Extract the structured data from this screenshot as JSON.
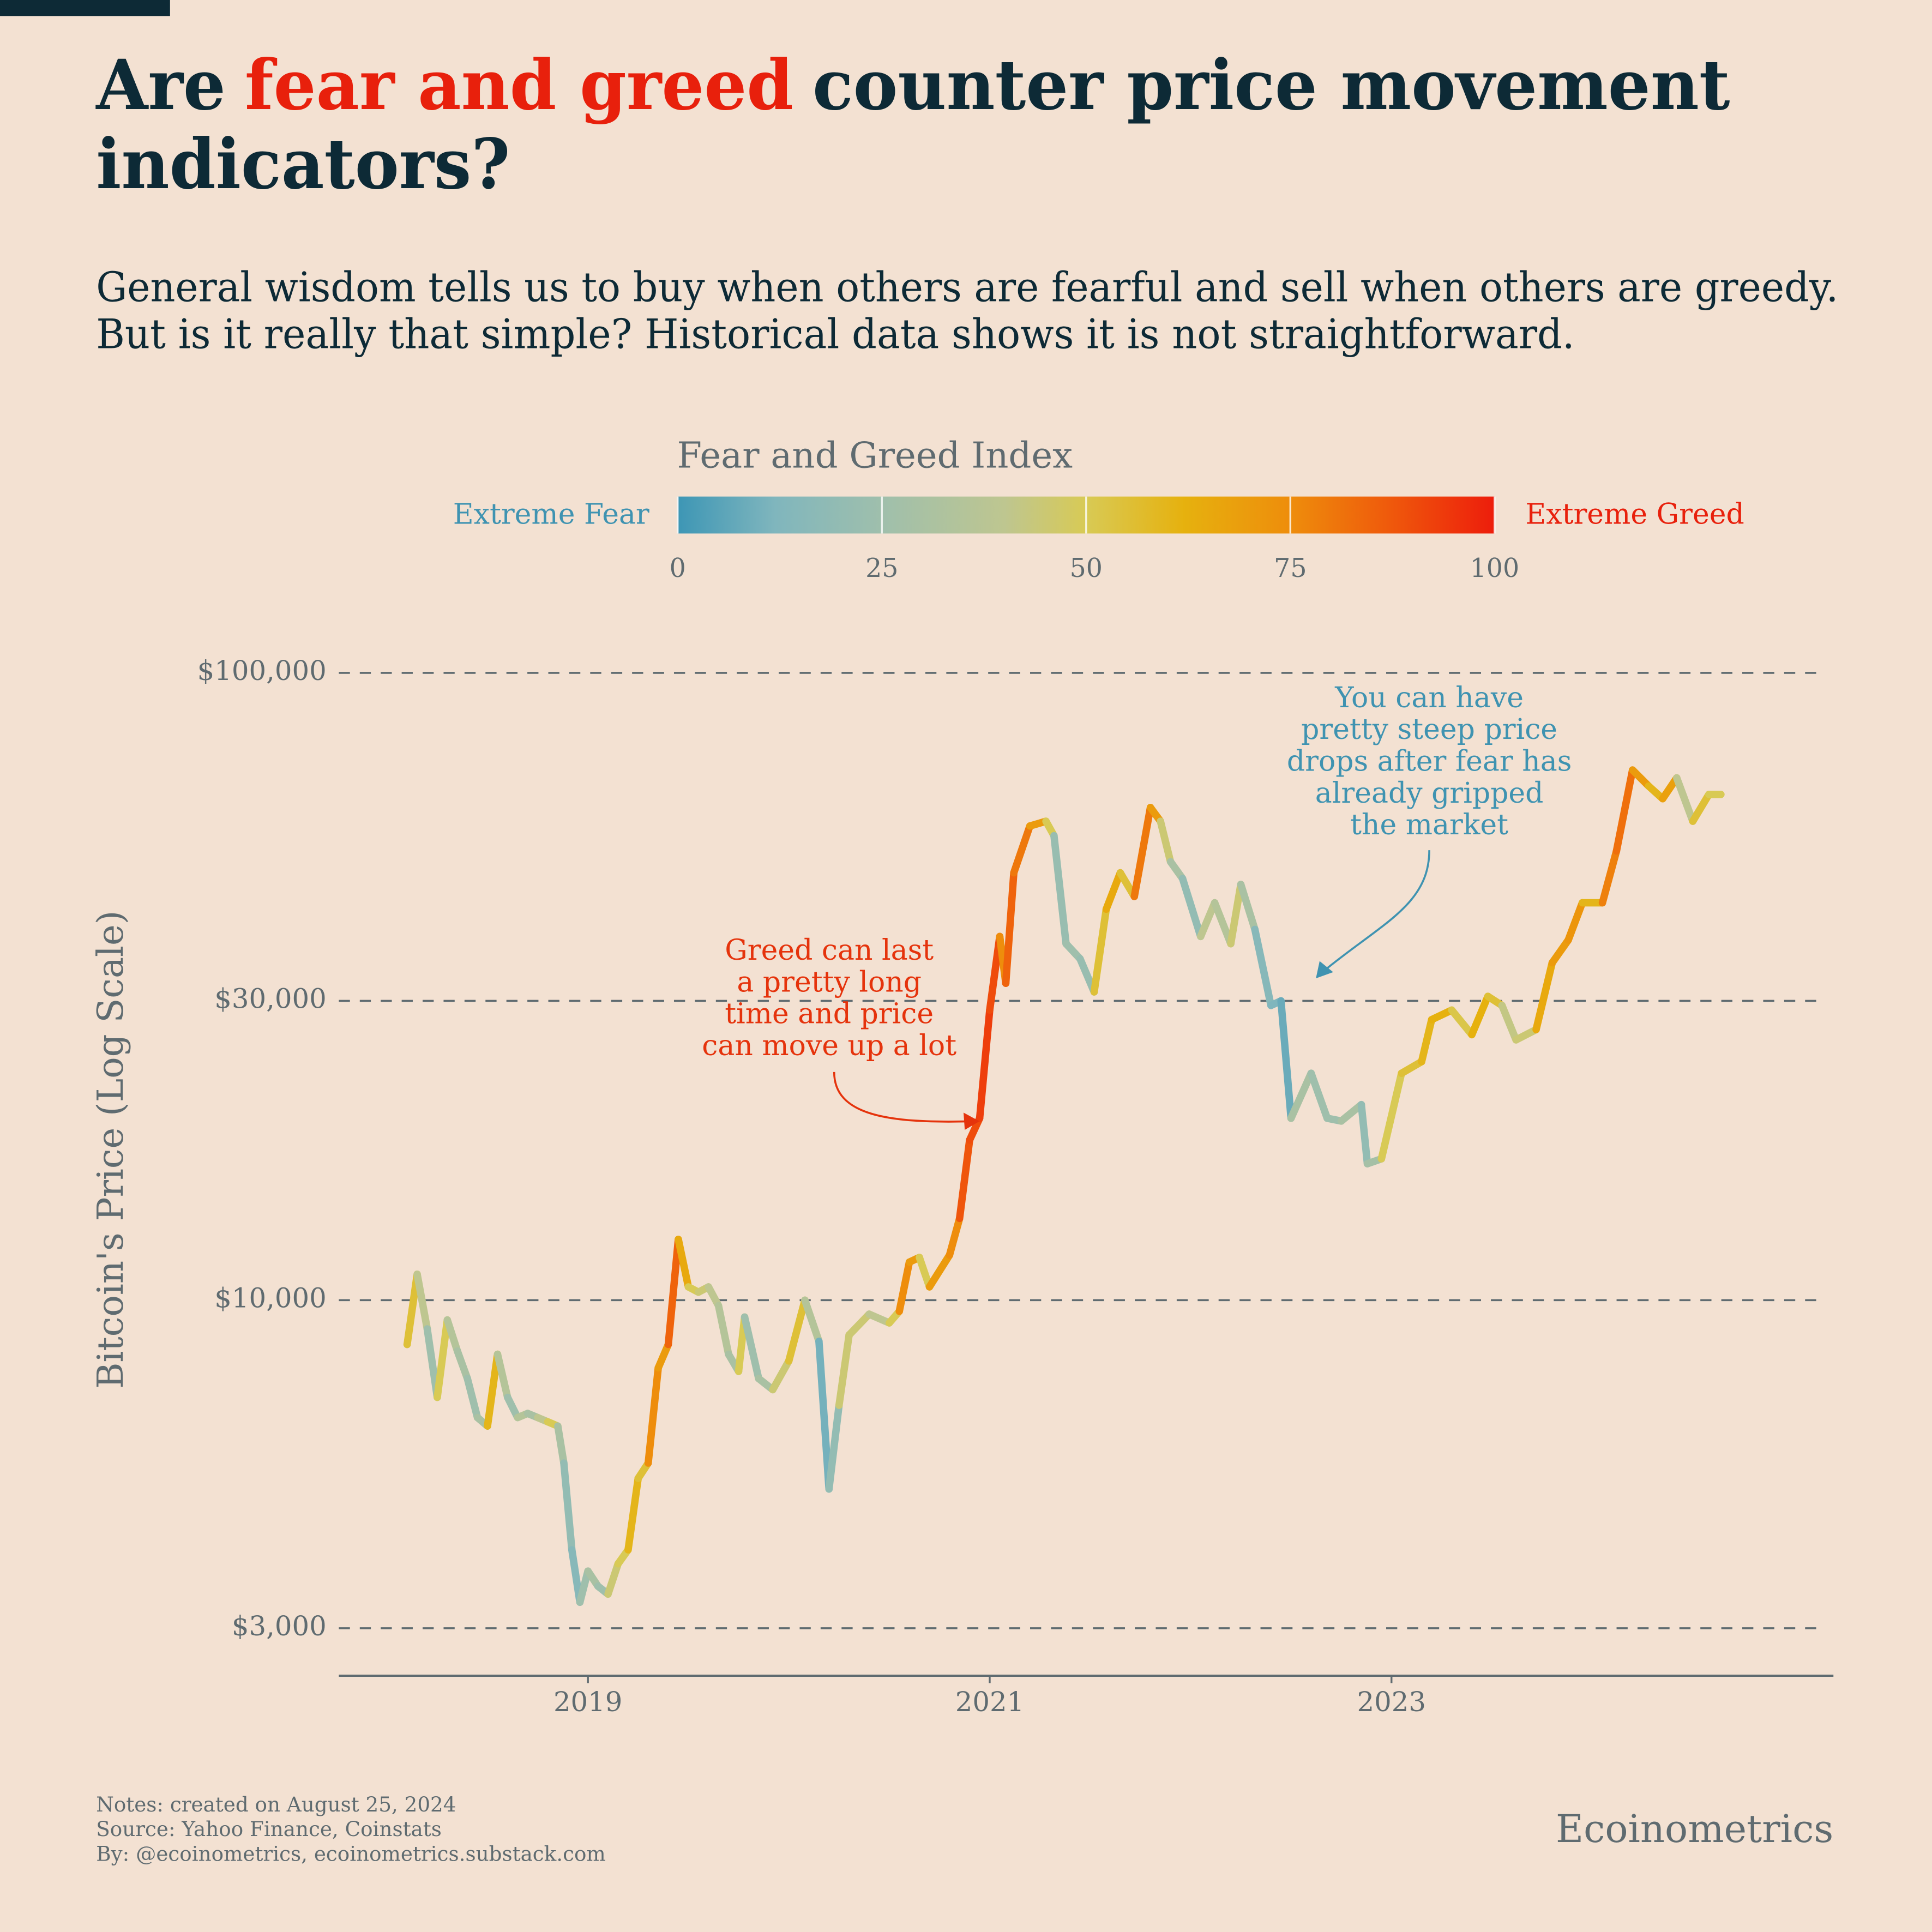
{
  "chart_data": {
    "type": "line",
    "title_parts": [
      "Are",
      "fear and greed",
      "counter price movement",
      "indicators?"
    ],
    "title_color": "#0d2a36",
    "highlight_color": "#e8200c",
    "subtitle": [
      "General wisdom tells us to buy when others are fearful and sell when others are greedy.",
      "But is it really that simple? Historical data shows it is not straightforward."
    ],
    "y_label": "Bitcoin's Price (Log Scale)",
    "log_y": true,
    "grid": true,
    "xlim": [
      2017.76,
      2025.2
    ],
    "xticks": [
      2019,
      2021,
      2023
    ],
    "ylim": [
      2520,
      110000
    ],
    "yticks": [
      {
        "value": 3000,
        "label": "$3,000"
      },
      {
        "value": 10000,
        "label": "$10,000"
      },
      {
        "value": 30000,
        "label": "$30,000"
      },
      {
        "value": 100000,
        "label": "$100,000"
      }
    ],
    "colorbar": {
      "title": "Fear and Greed Index",
      "low_label": "Extreme Fear",
      "high_label": "Extreme Greed",
      "range": [
        0,
        100
      ],
      "ticks": [
        0,
        25,
        50,
        75,
        100
      ],
      "low_color": "#3f93b1",
      "high_color": "#e8200c",
      "colorscale": [
        {
          "value": 0,
          "color": "#3d96b5"
        },
        {
          "value": 12,
          "color": "#80b6bd"
        },
        {
          "value": 25,
          "color": "#9fbfac"
        },
        {
          "value": 40,
          "color": "#bec690"
        },
        {
          "value": 50,
          "color": "#d8ca55"
        },
        {
          "value": 62,
          "color": "#e6b10e"
        },
        {
          "value": 75,
          "color": "#ee8d0c"
        },
        {
          "value": 87,
          "color": "#ef5a0c"
        },
        {
          "value": 100,
          "color": "#ed1d0c"
        }
      ]
    },
    "x": [
      2018.1,
      2018.15,
      2018.2,
      2018.25,
      2018.3,
      2018.35,
      2018.4,
      2018.45,
      2018.5,
      2018.55,
      2018.6,
      2018.65,
      2018.7,
      2018.75,
      2018.8,
      2018.85,
      2018.88,
      2018.92,
      2018.96,
      2019.0,
      2019.05,
      2019.1,
      2019.15,
      2019.2,
      2019.25,
      2019.3,
      2019.35,
      2019.4,
      2019.45,
      2019.5,
      2019.55,
      2019.6,
      2019.65,
      2019.7,
      2019.75,
      2019.78,
      2019.85,
      2019.92,
      2020.0,
      2020.08,
      2020.15,
      2020.2,
      2020.25,
      2020.3,
      2020.4,
      2020.5,
      2020.55,
      2020.6,
      2020.65,
      2020.7,
      2020.8,
      2020.85,
      2020.9,
      2020.95,
      2021.0,
      2021.05,
      2021.08,
      2021.12,
      2021.2,
      2021.28,
      2021.32,
      2021.38,
      2021.45,
      2021.52,
      2021.58,
      2021.65,
      2021.72,
      2021.8,
      2021.85,
      2021.9,
      2021.96,
      2022.05,
      2022.12,
      2022.2,
      2022.25,
      2022.32,
      2022.4,
      2022.45,
      2022.5,
      2022.6,
      2022.68,
      2022.75,
      2022.85,
      2022.88,
      2022.95,
      2023.05,
      2023.15,
      2023.2,
      2023.3,
      2023.4,
      2023.48,
      2023.55,
      2023.62,
      2023.72,
      2023.8,
      2023.88,
      2023.95,
      2024.05,
      2024.12,
      2024.2,
      2024.28,
      2024.35,
      2024.42,
      2024.5,
      2024.58,
      2024.64
    ],
    "values": [
      8500,
      11000,
      9000,
      7000,
      9300,
      8300,
      7500,
      6500,
      6300,
      8200,
      7000,
      6500,
      6600,
      6500,
      6400,
      6300,
      5500,
      4000,
      3300,
      3700,
      3500,
      3400,
      3800,
      4000,
      5200,
      5500,
      7800,
      8500,
      12500,
      10500,
      10300,
      10500,
      9800,
      8200,
      7700,
      9400,
      7500,
      7200,
      8000,
      10000,
      8600,
      5000,
      6800,
      8800,
      9500,
      9200,
      9600,
      11500,
      11700,
      10500,
      11800,
      13500,
      18000,
      19500,
      29000,
      38000,
      32000,
      48000,
      57000,
      58000,
      55000,
      37000,
      35000,
      31000,
      42000,
      48000,
      44000,
      61000,
      58000,
      50000,
      47000,
      38000,
      43000,
      37000,
      46000,
      39000,
      29500,
      30000,
      19500,
      23000,
      19500,
      19300,
      20500,
      16500,
      16800,
      23000,
      24000,
      28000,
      29000,
      26500,
      30500,
      29500,
      26000,
      27000,
      34500,
      37500,
      43000,
      43000,
      52000,
      70000,
      66000,
      63000,
      68000,
      58000,
      64000,
      64000
    ],
    "color_values": [
      40,
      55,
      40,
      25,
      50,
      35,
      30,
      25,
      30,
      60,
      35,
      25,
      35,
      30,
      40,
      50,
      30,
      20,
      15,
      25,
      30,
      25,
      45,
      50,
      60,
      55,
      75,
      70,
      85,
      65,
      50,
      45,
      40,
      35,
      30,
      50,
      25,
      30,
      45,
      55,
      35,
      10,
      20,
      45,
      45,
      40,
      50,
      75,
      70,
      50,
      70,
      75,
      88,
      90,
      93,
      90,
      75,
      85,
      80,
      70,
      50,
      22,
      25,
      22,
      55,
      65,
      55,
      80,
      70,
      45,
      30,
      20,
      40,
      35,
      45,
      30,
      15,
      12,
      8,
      30,
      25,
      25,
      30,
      20,
      28,
      50,
      55,
      60,
      62,
      52,
      62,
      55,
      42,
      45,
      65,
      70,
      72,
      60,
      78,
      82,
      70,
      60,
      68,
      40,
      55,
      50
    ],
    "annotations": [
      {
        "lines": [
          "Greed can last",
          "a pretty long",
          "time and price",
          "can move up a lot"
        ],
        "color": "#e5330c"
      },
      {
        "lines": [
          "You can have",
          "pretty steep price",
          "drops after fear has",
          "already gripped",
          "the market"
        ],
        "color": "#3f93b1"
      }
    ],
    "notes": [
      "Notes: created on August 25, 2024",
      "Source: Yahoo Finance, Coinstats",
      "By: @ecoinometrics, ecoinometrics.substack.com"
    ],
    "brand": "Ecoinometrics"
  }
}
